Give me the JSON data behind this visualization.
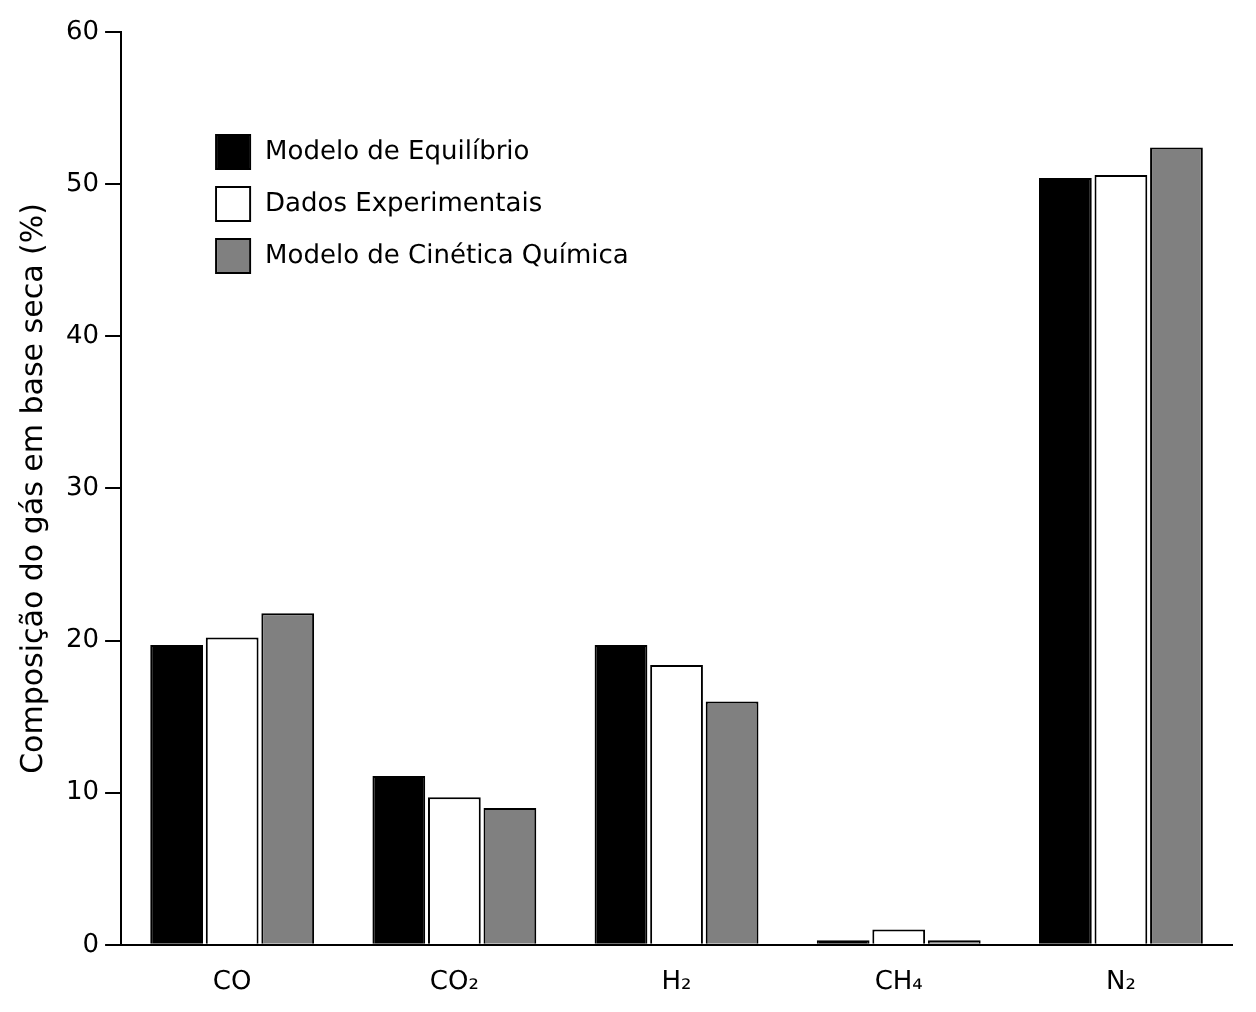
{
  "chart_data": {
    "type": "bar",
    "ylabel": "Composição do gás em base seca (%)",
    "categories": [
      "CO",
      "CO₂",
      "H₂",
      "CH₄",
      "N₂"
    ],
    "series": [
      {
        "name": "Modelo de Equilíbrio",
        "color": "#000000",
        "values": [
          19.7,
          11.1,
          19.7,
          0.3,
          50.4
        ]
      },
      {
        "name": "Dados Experimentais",
        "color": "#ffffff",
        "values": [
          20.2,
          9.7,
          18.4,
          1.0,
          50.6
        ]
      },
      {
        "name": "Modelo de Cinética Química",
        "color": "#808080",
        "values": [
          21.8,
          9.0,
          16.0,
          0.3,
          52.4
        ]
      }
    ],
    "ylim": [
      0,
      60
    ],
    "yticks": [
      0,
      10,
      20,
      30,
      40,
      50,
      60
    ],
    "grid": false,
    "legend": "top left"
  }
}
